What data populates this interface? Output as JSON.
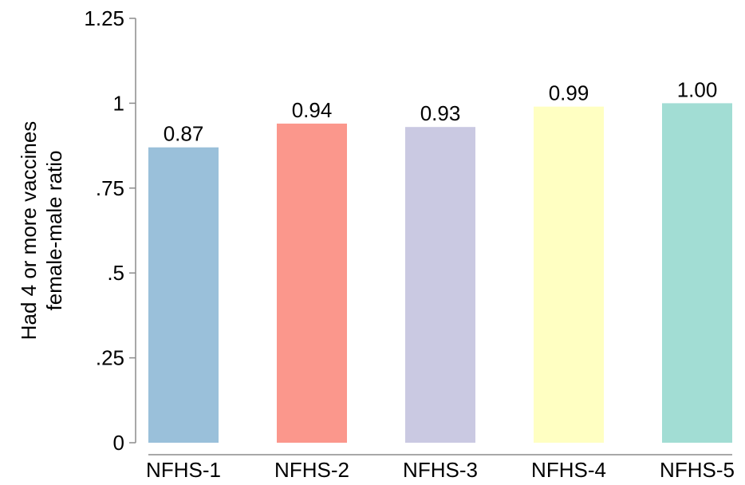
{
  "chart_data": {
    "type": "bar",
    "categories": [
      "NFHS-1",
      "NFHS-2",
      "NFHS-3",
      "NFHS-4",
      "NFHS-5"
    ],
    "values": [
      0.87,
      0.94,
      0.93,
      0.99,
      1.0
    ],
    "value_labels": [
      "0.87",
      "0.94",
      "0.93",
      "0.99",
      "1.00"
    ],
    "colors": [
      "#9ac0da",
      "#fb978c",
      "#cac9e2",
      "#ffffc2",
      "#a2ddd4"
    ],
    "ylabel_lines": [
      "Had 4 or more vaccines",
      "female-male ratio"
    ],
    "ylim": [
      0,
      1.25
    ],
    "yticks": [
      {
        "value": 0,
        "label": "0"
      },
      {
        "value": 0.25,
        "label": ".25"
      },
      {
        "value": 0.5,
        "label": ".5"
      },
      {
        "value": 0.75,
        "label": ".75"
      },
      {
        "value": 1,
        "label": "1"
      },
      {
        "value": 1.25,
        "label": "1.25"
      }
    ],
    "grid": false,
    "legend": "none"
  }
}
